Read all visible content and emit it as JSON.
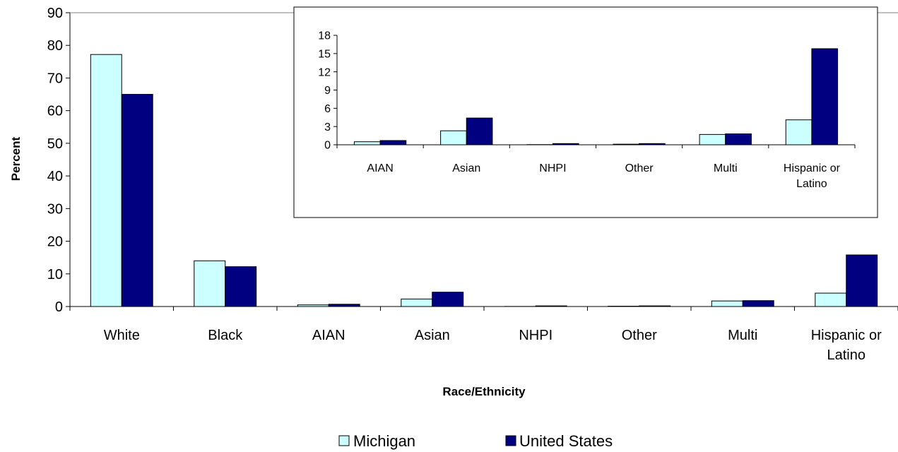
{
  "chart_data": [
    {
      "type": "bar",
      "categories": [
        "White",
        "Black",
        "AIAN",
        "Asian",
        "NHPI",
        "Other",
        "Multi",
        "Hispanic or Latino"
      ],
      "series": [
        {
          "name": "Michigan",
          "values": [
            77.2,
            14.0,
            0.5,
            2.3,
            0.03,
            0.1,
            1.7,
            4.1
          ],
          "color": "#ccffff"
        },
        {
          "name": "United States",
          "values": [
            65.0,
            12.2,
            0.7,
            4.4,
            0.2,
            0.2,
            1.8,
            15.8
          ],
          "color": "#000080"
        }
      ],
      "xlabel": "Race/Ethnicity",
      "ylabel": "Percent",
      "ylim": [
        0,
        90
      ],
      "yticks": [
        0,
        10,
        20,
        30,
        40,
        50,
        60,
        70,
        80,
        90
      ],
      "grid": false,
      "legend": "bottom"
    },
    {
      "type": "bar",
      "categories": [
        "AIAN",
        "Asian",
        "NHPI",
        "Other",
        "Multi",
        "Hispanic or Latino"
      ],
      "series": [
        {
          "name": "Michigan",
          "values": [
            0.5,
            2.3,
            0.03,
            0.1,
            1.7,
            4.1
          ],
          "color": "#ccffff"
        },
        {
          "name": "United States",
          "values": [
            0.7,
            4.4,
            0.2,
            0.2,
            1.8,
            15.8
          ],
          "color": "#000080"
        }
      ],
      "ylim": [
        0,
        18
      ],
      "yticks": [
        0,
        3,
        6,
        9,
        12,
        15,
        18
      ],
      "grid": false
    }
  ]
}
